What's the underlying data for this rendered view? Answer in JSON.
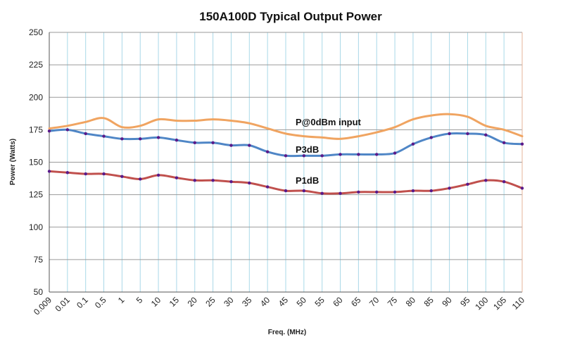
{
  "chart_data": {
    "type": "line",
    "title": "150A100D Typical Output Power",
    "xlabel": "Freq. (MHz)",
    "ylabel": "Power (Watts)",
    "categories": [
      "0.009",
      "0.01",
      "0.1",
      "0.5",
      "1",
      "5",
      "10",
      "15",
      "20",
      "25",
      "30",
      "35",
      "40",
      "45",
      "50",
      "55",
      "60",
      "65",
      "70",
      "75",
      "80",
      "85",
      "90",
      "95",
      "100",
      "105",
      "110"
    ],
    "ylim": [
      50,
      250
    ],
    "yticks": [
      "50",
      "75",
      "100",
      "125",
      "150",
      "175",
      "200",
      "225",
      "250"
    ],
    "grid": true,
    "series": [
      {
        "name": "P@0dBm input",
        "color": "#f0a461",
        "markers": false,
        "values": [
          176,
          178,
          181,
          184,
          177,
          178,
          183,
          182,
          182,
          183,
          182,
          180,
          176,
          172,
          170,
          169,
          168,
          170,
          173,
          177,
          183,
          186,
          187,
          185,
          178,
          175,
          170
        ]
      },
      {
        "name": "P3dB",
        "color": "#4f86c6",
        "markers": true,
        "values": [
          174,
          175,
          172,
          170,
          168,
          168,
          169,
          167,
          165,
          165,
          163,
          163,
          158,
          155,
          155,
          155,
          156,
          156,
          156,
          157,
          164,
          169,
          172,
          172,
          171,
          165,
          164
        ]
      },
      {
        "name": "P1dB",
        "color": "#c0504d",
        "markers": true,
        "values": [
          143,
          142,
          141,
          141,
          139,
          137,
          140,
          138,
          136,
          136,
          135,
          134,
          131,
          128,
          128,
          126,
          126,
          127,
          127,
          127,
          128,
          128,
          130,
          133,
          136,
          135,
          130
        ]
      }
    ],
    "annotations": [
      "P@0dBm input",
      "P3dB",
      "P1dB"
    ]
  }
}
